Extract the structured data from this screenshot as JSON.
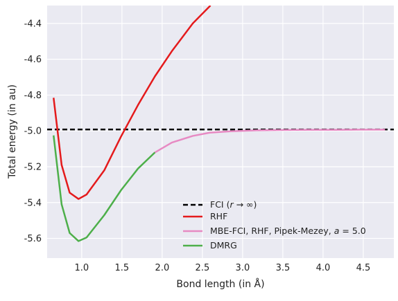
{
  "chart_data": {
    "type": "line",
    "xlabel": "Bond length (in Å)",
    "ylabel": "Total energy (in au)",
    "xlim": [
      0.57,
      4.88
    ],
    "ylim": [
      -5.71,
      -4.3
    ],
    "xticks": [
      "1.0",
      "1.5",
      "2.0",
      "2.5",
      "3.0",
      "3.5",
      "4.0",
      "4.5"
    ],
    "xtick_values": [
      1.0,
      1.5,
      2.0,
      2.5,
      3.0,
      3.5,
      4.0,
      4.5
    ],
    "yticks": [
      "-4.4",
      "-4.6",
      "-4.8",
      "-5.0",
      "-5.2",
      "-5.4",
      "-5.6"
    ],
    "ytick_values": [
      -4.4,
      -4.6,
      -4.8,
      -5.0,
      -5.2,
      -5.4,
      -5.6
    ],
    "grid": true,
    "legend_position": "lower-right",
    "series": [
      {
        "name": "FCI (r → ∞)",
        "label_prefix": "FCI (",
        "label_r": "r",
        "label_suffix": " → ∞)",
        "color": "#000000",
        "dash": true,
        "x": [
          0.57,
          4.88
        ],
        "y": [
          -4.992,
          -4.992
        ]
      },
      {
        "name": "RHF",
        "color": "#e41a1c",
        "dash": false,
        "x": [
          0.65,
          0.75,
          0.85,
          0.96,
          1.06,
          1.28,
          1.49,
          1.7,
          1.91,
          2.12,
          2.38,
          2.6
        ],
        "y": [
          -4.815,
          -5.19,
          -5.345,
          -5.38,
          -5.355,
          -5.22,
          -5.03,
          -4.855,
          -4.695,
          -4.555,
          -4.4,
          -4.3
        ]
      },
      {
        "name": "MBE-FCI, RHF, Pipek-Mezey, a = 5.0",
        "label_main": "MBE-FCI, RHF, Pipek-Mezey, ",
        "label_a": "a",
        "label_eq": " = 5.0",
        "color": "#e78ac3",
        "dash": false,
        "x": [
          1.91,
          2.12,
          2.38,
          2.59,
          2.85,
          3.17,
          3.49,
          3.81,
          4.13,
          4.45,
          4.77
        ],
        "y": [
          -5.12,
          -5.065,
          -5.028,
          -5.01,
          -5.002,
          -4.997,
          -4.995,
          -4.994,
          -4.994,
          -4.993,
          -4.993
        ]
      },
      {
        "name": "DMRG",
        "color": "#4daf4a",
        "dash": false,
        "x": [
          0.65,
          0.75,
          0.85,
          0.96,
          1.06,
          1.28,
          1.49,
          1.7,
          1.91
        ],
        "y": [
          -5.025,
          -5.41,
          -5.57,
          -5.615,
          -5.595,
          -5.47,
          -5.33,
          -5.21,
          -5.12
        ]
      }
    ]
  }
}
